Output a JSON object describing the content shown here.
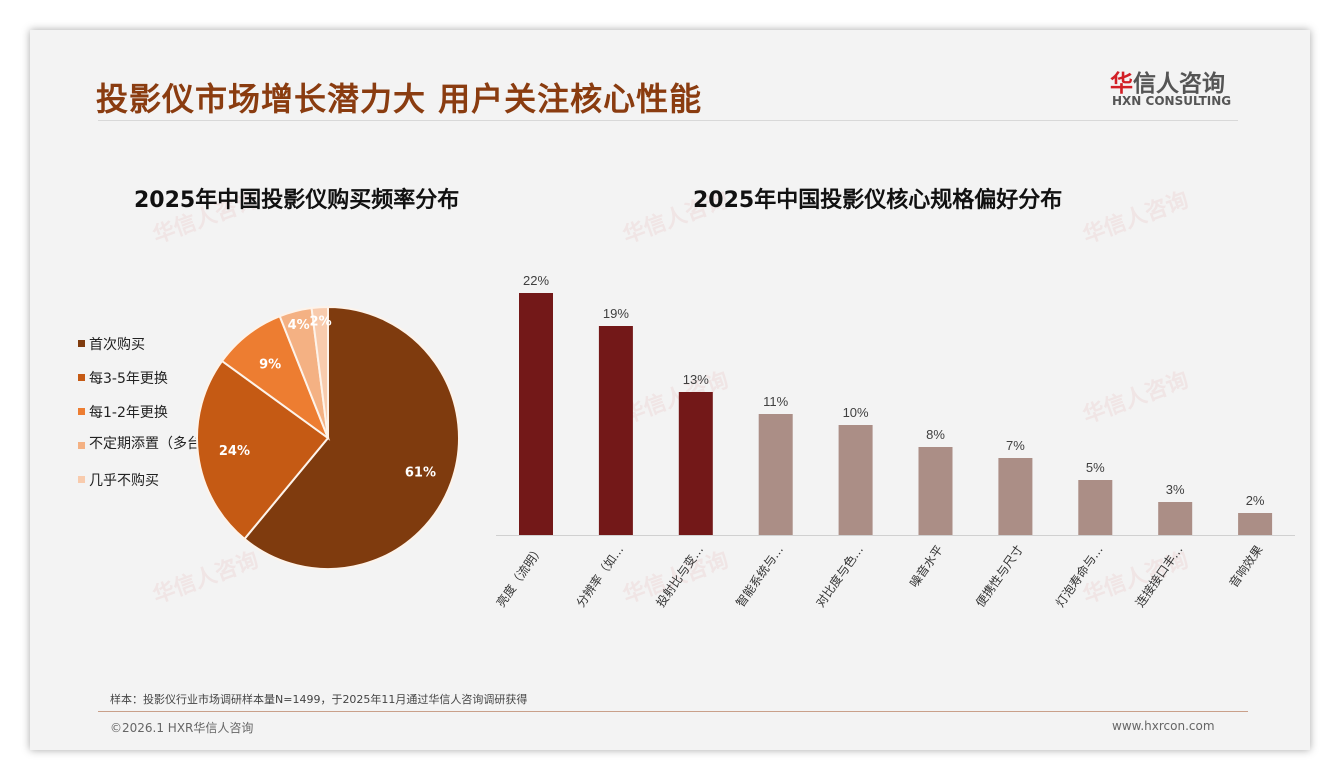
{
  "header": {
    "title": "投影仪市场增长潜力大 用户关注核心性能",
    "logo_cn_red": "华",
    "logo_cn": "信人咨询",
    "logo_en": "HXN CONSULTING"
  },
  "footer": {
    "note": "样本：投影仪行业市场调研样本量N=1499，于2025年11月通过华信人咨询调研获得",
    "copyright": "©2026.1 HXR华信人咨询",
    "url": "www.hxrcon.com"
  },
  "watermark": "华信人咨询",
  "chart_data": [
    {
      "type": "pie",
      "title": "2025年中国投影仪购买频率分布",
      "legend_position": "left",
      "labels": [
        "首次购买",
        "每3-5年更换",
        "每1-2年更换",
        "不定期添置（多台）",
        "几乎不购买"
      ],
      "values": [
        61,
        24,
        9,
        4,
        2
      ],
      "value_labels": [
        "61%",
        "24%",
        "9%",
        "4%",
        "2%"
      ],
      "colors": [
        "#7f3b0e",
        "#c55a14",
        "#ed7d31",
        "#f4b183",
        "#f8cbad"
      ]
    },
    {
      "type": "bar",
      "title": "2025年中国投影仪核心规格偏好分布",
      "categories": [
        "亮度（流明）",
        "分辨率（如…",
        "投射比与变…",
        "智能系统与…",
        "对比度与色…",
        "噪音水平",
        "便携性与尺寸",
        "灯泡寿命与…",
        "连接接口丰…",
        "音响效果"
      ],
      "values": [
        22,
        19,
        13,
        11,
        10,
        8,
        7,
        5,
        3,
        2
      ],
      "value_labels": [
        "22%",
        "19%",
        "13%",
        "11%",
        "10%",
        "8%",
        "7%",
        "5%",
        "3%",
        "2%"
      ],
      "colors": [
        "#731818",
        "#731818",
        "#731818",
        "#ab8e86",
        "#ab8e86",
        "#ab8e86",
        "#ab8e86",
        "#ab8e86",
        "#ab8e86",
        "#ab8e86"
      ],
      "ylim": [
        0,
        22
      ],
      "grid": false
    }
  ]
}
